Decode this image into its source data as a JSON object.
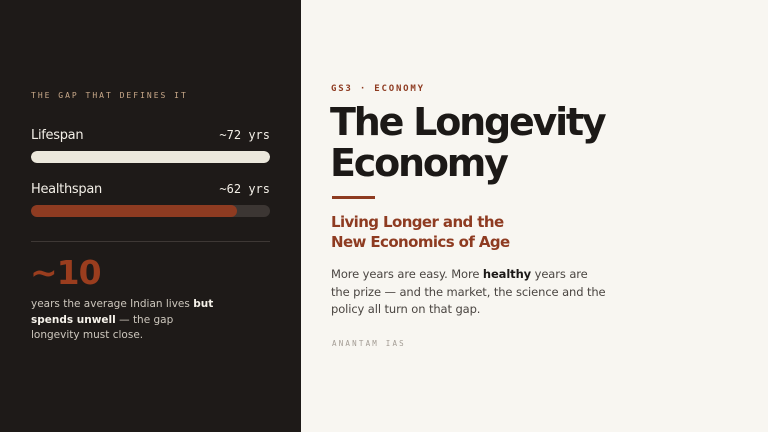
{
  "left": {
    "eyebrow": "THE GAP THAT DEFINES IT",
    "metrics": [
      {
        "label": "Lifespan",
        "value": "~72 yrs",
        "years": 72,
        "fill_color": "#ece8dc"
      },
      {
        "label": "Healthspan",
        "value": "~62 yrs",
        "years": 62,
        "fill_color": "#8e3b21"
      }
    ],
    "stat": {
      "number": "~10",
      "caption_pre": "years the average Indian lives ",
      "caption_bold": "but spends unwell",
      "caption_post": " — the gap longevity must close."
    }
  },
  "right": {
    "eyebrow": "GS3 · ECONOMY",
    "title_line1": "The Longevity",
    "title_line2": "Economy",
    "subtitle_line1": "Living Longer and the",
    "subtitle_line2": "New Economics of Age",
    "body_pre": "More years are easy. More ",
    "body_bold": "healthy",
    "body_post": " years are the prize — and the market, the science and the policy all turn on that gap.",
    "brand": "ANANTAM IAS"
  },
  "colors": {
    "dark_bg": "#1e1a18",
    "light_bg": "#f8f6f1",
    "accent": "#8e3b21",
    "title": "#1c1917"
  }
}
